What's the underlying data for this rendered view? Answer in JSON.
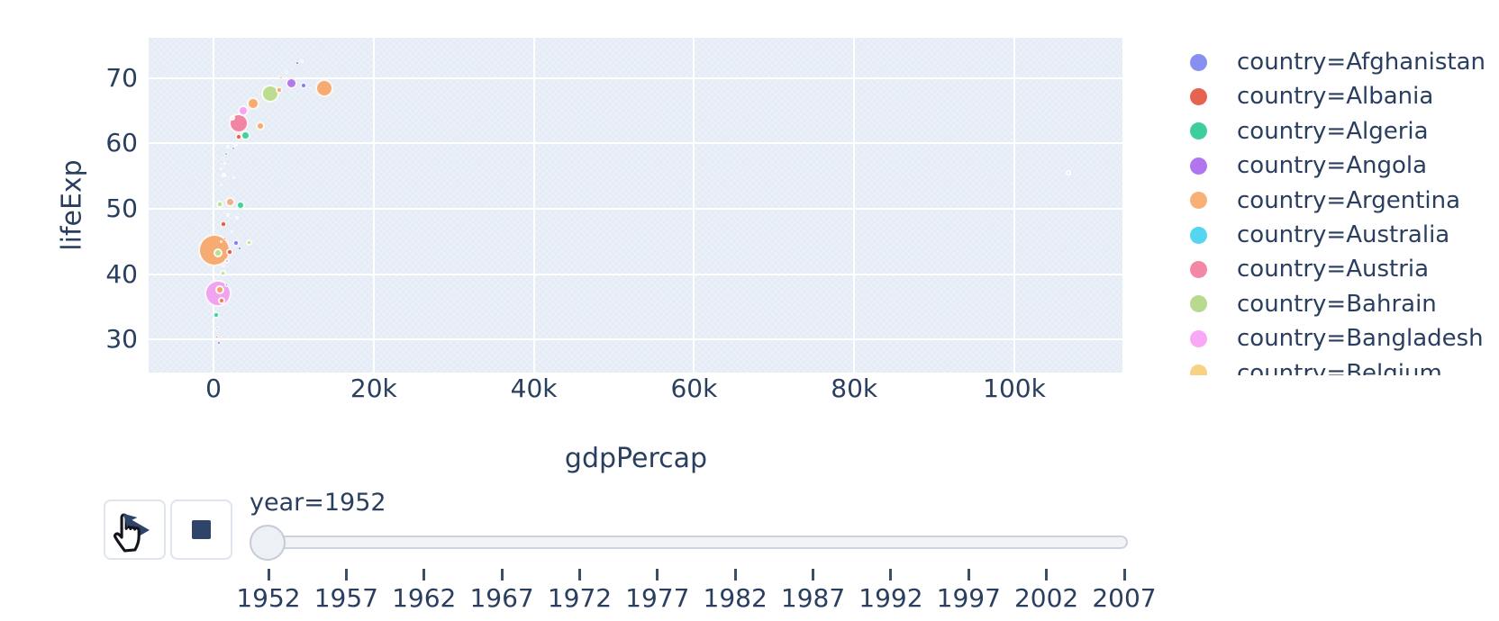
{
  "colors": {
    "text": "#2a3f5f",
    "plot_bg": "#e5ecf6",
    "grid": "#ffffff",
    "button_border": "#dfe5ec",
    "icon": "#2e4468",
    "slider_track": "#f1f3f6",
    "slider_border": "#ccd3dc"
  },
  "chart_data": {
    "type": "scatter",
    "subtype": "bubble",
    "title": "",
    "xlabel": "gdpPercap",
    "ylabel": "lifeExp",
    "xlim": [
      -8100,
      113500
    ],
    "ylim": [
      24.9,
      76.2
    ],
    "grid": true,
    "legend_position": "right",
    "x_ticks": [
      {
        "v": 0,
        "label": "0"
      },
      {
        "v": 20000,
        "label": "20k"
      },
      {
        "v": 40000,
        "label": "40k"
      },
      {
        "v": 60000,
        "label": "60k"
      },
      {
        "v": 80000,
        "label": "80k"
      },
      {
        "v": 100000,
        "label": "100k"
      }
    ],
    "y_ticks": [
      {
        "v": 70,
        "label": "70"
      },
      {
        "v": 60,
        "label": "60"
      },
      {
        "v": 50,
        "label": "50"
      },
      {
        "v": 40,
        "label": "40"
      },
      {
        "v": 30,
        "label": "30"
      }
    ],
    "legend_items": [
      {
        "label": "country=Afghanistan",
        "color": "#8790f0"
      },
      {
        "label": "country=Albania",
        "color": "#e56450"
      },
      {
        "label": "country=Algeria",
        "color": "#3ecd9d"
      },
      {
        "label": "country=Angola",
        "color": "#b175ef"
      },
      {
        "label": "country=Argentina",
        "color": "#f7b176"
      },
      {
        "label": "country=Australia",
        "color": "#55d6f0"
      },
      {
        "label": "country=Austria",
        "color": "#f387a6"
      },
      {
        "label": "country=Bahrain",
        "color": "#b8da8e"
      },
      {
        "label": "country=Bangladesh",
        "color": "#f9a8f7"
      },
      {
        "label": "country=Belgium",
        "color": "#f9d184"
      }
    ],
    "points": [
      {
        "x": 13800,
        "y": 68.5,
        "r": 10,
        "c": "#f5ab71"
      },
      {
        "x": 110,
        "y": 43.7,
        "r": 18,
        "c": "#f5ab71"
      },
      {
        "x": 560,
        "y": 37.0,
        "r": 15,
        "c": "#f0a3ee"
      },
      {
        "x": 3150,
        "y": 63.1,
        "r": 11,
        "c": "#f285a2"
      },
      {
        "x": 7090,
        "y": 67.7,
        "r": 10,
        "c": "#bcdc8f"
      },
      {
        "x": 9700,
        "y": 69.3,
        "r": 6.5,
        "c": "#b27ae8"
      },
      {
        "x": 4950,
        "y": 66.1,
        "r": 7,
        "c": "#f5ab71"
      },
      {
        "x": 3710,
        "y": 65.0,
        "r": 6,
        "c": "#f6a3f3"
      },
      {
        "x": 5850,
        "y": 62.7,
        "r": 5,
        "c": "#f5ab71"
      },
      {
        "x": 3940,
        "y": 61.2,
        "r": 5.5,
        "c": "#44cf9c"
      },
      {
        "x": 3150,
        "y": 61.0,
        "r": 4,
        "c": "#e4604e"
      },
      {
        "x": 11250,
        "y": 68.9,
        "r": 4,
        "c": "#7b84ec"
      },
      {
        "x": 8210,
        "y": 68.2,
        "r": 4,
        "c": "#f5ab71"
      },
      {
        "x": 10460,
        "y": 72.3,
        "r": 2,
        "c": "#7b84ec"
      },
      {
        "x": 11025,
        "y": 72.6,
        "r": 2,
        "c": "#e8eef5"
      },
      {
        "x": 9790,
        "y": 71.7,
        "r": 1.5,
        "c": "#aab6d8"
      },
      {
        "x": 9110,
        "y": 71.0,
        "r": 2,
        "c": "#dce6f2"
      },
      {
        "x": 8440,
        "y": 70.1,
        "r": 2,
        "c": "#f0c29a"
      },
      {
        "x": 2360,
        "y": 63.9,
        "r": 3,
        "c": "#eef2f8"
      },
      {
        "x": 2810,
        "y": 59.9,
        "r": 2.5,
        "c": "#d8e2f0"
      },
      {
        "x": 2475,
        "y": 59.2,
        "r": 2,
        "c": "#b99be8"
      },
      {
        "x": 1800,
        "y": 59.5,
        "r": 2,
        "c": "#e8eef5"
      },
      {
        "x": 1575,
        "y": 58.4,
        "r": 2,
        "c": "#66d4b2"
      },
      {
        "x": 1125,
        "y": 57.7,
        "r": 1.5,
        "c": "#f0b486"
      },
      {
        "x": 1460,
        "y": 57.0,
        "r": 1.5,
        "c": "#e8eef5"
      },
      {
        "x": 1010,
        "y": 56.1,
        "r": 1.5,
        "c": "#dce6f2"
      },
      {
        "x": 1240,
        "y": 55.2,
        "r": 2.5,
        "c": "#eef2f8"
      },
      {
        "x": 1690,
        "y": 54.6,
        "r": 1.5,
        "c": "#f5ab71"
      },
      {
        "x": 900,
        "y": 53.6,
        "r": 1.5,
        "c": "#dce6f2"
      },
      {
        "x": 2475,
        "y": 54.8,
        "r": 1.5,
        "c": "#eef2f8"
      },
      {
        "x": 790,
        "y": 50.7,
        "r": 4,
        "c": "#bcdc8f"
      },
      {
        "x": 2025,
        "y": 51.1,
        "r": 5.5,
        "c": "#f2b088"
      },
      {
        "x": 3375,
        "y": 50.6,
        "r": 5,
        "c": "#44cf9c"
      },
      {
        "x": 1240,
        "y": 47.7,
        "r": 4,
        "c": "#e0584a"
      },
      {
        "x": 560,
        "y": 43.2,
        "r": 5,
        "c": "#bcdc8f"
      },
      {
        "x": 2025,
        "y": 43.4,
        "r": 4,
        "c": "#e0584a"
      },
      {
        "x": 2810,
        "y": 44.8,
        "r": 4,
        "c": "#7b84ec"
      },
      {
        "x": 4390,
        "y": 44.8,
        "r": 3.5,
        "c": "#bcdc8f"
      },
      {
        "x": 3260,
        "y": 43.9,
        "r": 2,
        "c": "#7b84ec"
      },
      {
        "x": 1690,
        "y": 42.0,
        "r": 3,
        "c": "#f6a3f3"
      },
      {
        "x": 1125,
        "y": 40.1,
        "r": 3.5,
        "c": "#bcdc8f"
      },
      {
        "x": 790,
        "y": 37.6,
        "r": 5,
        "c": "#f2a06c"
      },
      {
        "x": 1010,
        "y": 35.9,
        "r": 4,
        "c": "#e87d5e"
      },
      {
        "x": 1575,
        "y": 38.4,
        "r": 2.5,
        "c": "#5560c8"
      },
      {
        "x": 340,
        "y": 33.7,
        "r": 4,
        "c": "#44cf9c"
      },
      {
        "x": 450,
        "y": 31.7,
        "r": 2,
        "c": "#c8d4e6"
      },
      {
        "x": 340,
        "y": 30.4,
        "r": 1.5,
        "c": "#e0584a"
      },
      {
        "x": 675,
        "y": 29.4,
        "r": 2,
        "c": "#8a7ae0"
      },
      {
        "x": 1800,
        "y": 49.0,
        "r": 2,
        "c": "#eef2f8"
      },
      {
        "x": 2900,
        "y": 48.6,
        "r": 2,
        "c": "#eef2f8"
      },
      {
        "x": 2250,
        "y": 46.5,
        "r": 1.5,
        "c": "#e8eef5"
      },
      {
        "x": 1460,
        "y": 45.4,
        "r": 1.5,
        "c": "#e0584a"
      },
      {
        "x": 900,
        "y": 44.9,
        "r": 1.5,
        "c": "#f0b486"
      },
      {
        "x": 1240,
        "y": 41.2,
        "r": 1.5,
        "c": "#eef2f8"
      },
      {
        "x": 106760,
        "y": 55.5,
        "r": 3,
        "c": "#d3e3f3"
      }
    ]
  },
  "controls": {
    "play_label": "play",
    "stop_label": "stop",
    "frame_label": "year=1952",
    "slider": {
      "current_year": "1952",
      "years": [
        "1952",
        "1957",
        "1962",
        "1967",
        "1972",
        "1977",
        "1982",
        "1987",
        "1992",
        "1997",
        "2002",
        "2007"
      ]
    }
  }
}
